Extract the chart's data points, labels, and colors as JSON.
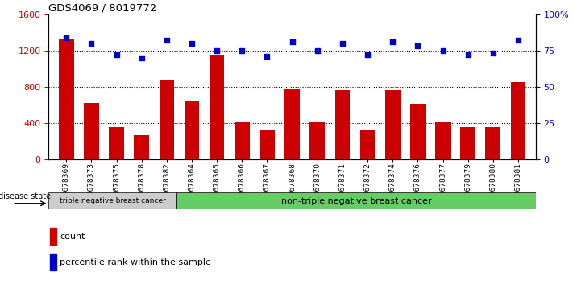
{
  "title": "GDS4069 / 8019772",
  "samples": [
    "GSM678369",
    "GSM678373",
    "GSM678375",
    "GSM678378",
    "GSM678382",
    "GSM678364",
    "GSM678365",
    "GSM678366",
    "GSM678367",
    "GSM678368",
    "GSM678370",
    "GSM678371",
    "GSM678372",
    "GSM678374",
    "GSM678376",
    "GSM678377",
    "GSM678379",
    "GSM678380",
    "GSM678381"
  ],
  "counts": [
    1330,
    620,
    360,
    270,
    880,
    650,
    1150,
    410,
    330,
    780,
    410,
    760,
    330,
    760,
    610,
    410,
    360,
    360,
    850
  ],
  "percentiles": [
    84,
    80,
    72,
    70,
    82,
    80,
    75,
    75,
    71,
    81,
    75,
    80,
    72,
    81,
    78,
    75,
    72,
    73,
    82
  ],
  "triple_neg_count": 5,
  "group1_label": "triple negative breast cancer",
  "group2_label": "non-triple negative breast cancer",
  "disease_state_label": "disease state",
  "legend_count": "count",
  "legend_percentile": "percentile rank within the sample",
  "bar_color": "#CC0000",
  "dot_color": "#0000CC",
  "ylim_left": [
    0,
    1600
  ],
  "ylim_right": [
    0,
    100
  ],
  "yticks_left": [
    0,
    400,
    800,
    1200,
    1600
  ],
  "yticks_right": [
    0,
    25,
    50,
    75,
    100
  ],
  "ytick_labels_right": [
    "0",
    "25",
    "50",
    "75",
    "100%"
  ],
  "grid_values": [
    400,
    800,
    1200
  ],
  "group1_color": "#cccccc",
  "group2_color": "#66cc66",
  "bg_color": "#ffffff"
}
